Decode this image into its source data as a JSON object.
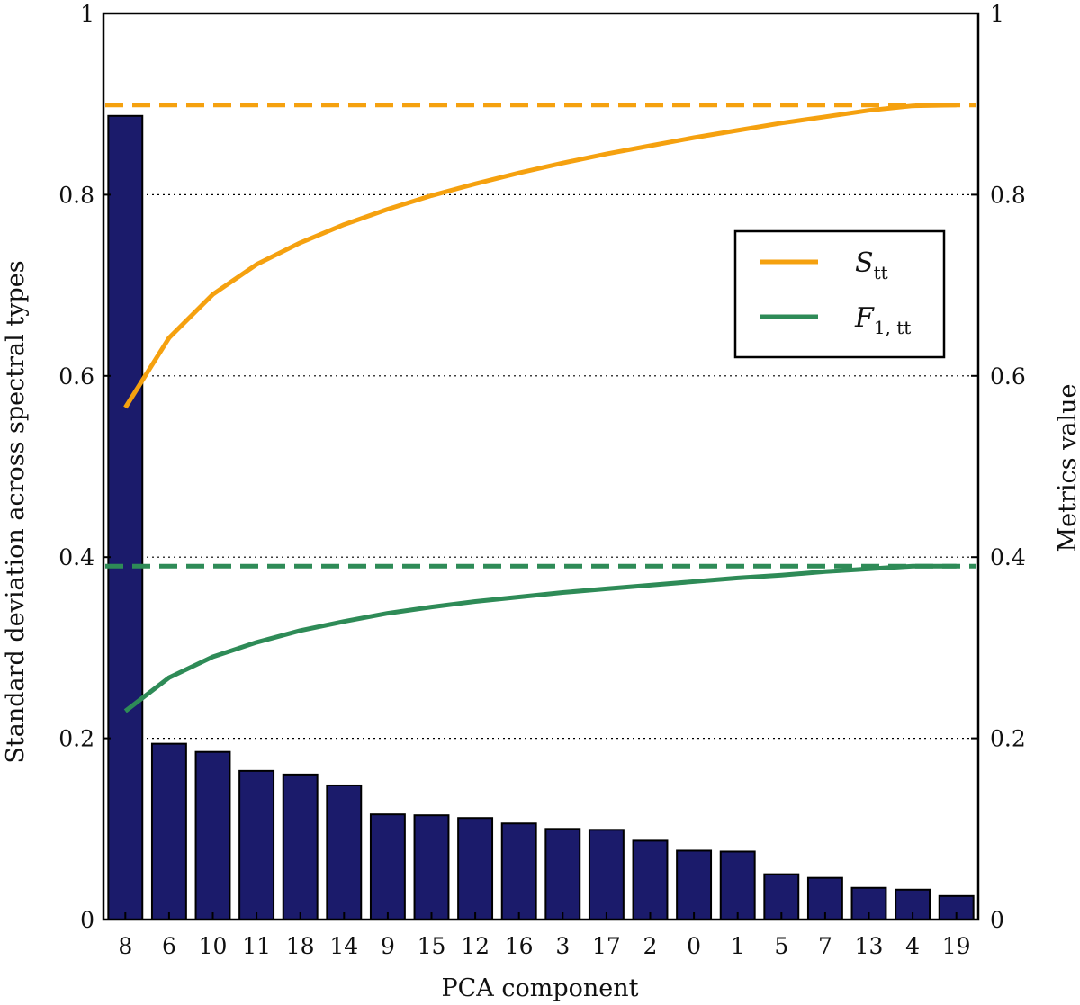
{
  "chart_data": {
    "type": "bar",
    "xlabel": "PCA component",
    "ylabel": "Standard deviation across spectral types",
    "y2label": "Metrics value",
    "categories": [
      "8",
      "6",
      "10",
      "11",
      "18",
      "14",
      "9",
      "15",
      "12",
      "16",
      "3",
      "17",
      "2",
      "0",
      "1",
      "5",
      "7",
      "13",
      "4",
      "19"
    ],
    "ylim": [
      0,
      1
    ],
    "y2lim": [
      0,
      1
    ],
    "yticks": [
      "0",
      "0.2",
      "0.4",
      "0.6",
      "0.8",
      "1"
    ],
    "y2ticks": [
      "0",
      "0.2",
      "0.4",
      "0.6",
      "0.8",
      "1"
    ],
    "grid": "horizontal dotted at 0.2 intervals",
    "legend_position": "upper-right",
    "bar_series": {
      "axis": "left",
      "color": "#1b1b6b",
      "values": [
        0.887,
        0.194,
        0.185,
        0.164,
        0.16,
        0.148,
        0.116,
        0.115,
        0.112,
        0.106,
        0.1,
        0.099,
        0.087,
        0.076,
        0.075,
        0.05,
        0.046,
        0.035,
        0.033,
        0.026
      ]
    },
    "series": [
      {
        "name": "S",
        "name_sub": "tt",
        "axis": "right",
        "color": "#f5a10f",
        "values": [
          0.565,
          0.642,
          0.69,
          0.723,
          0.747,
          0.767,
          0.784,
          0.799,
          0.812,
          0.824,
          0.835,
          0.845,
          0.854,
          0.863,
          0.871,
          0.879,
          0.886,
          0.893,
          0.898,
          0.899
        ],
        "reference": 0.899
      },
      {
        "name": "F",
        "name_sub": "1, tt",
        "axis": "right",
        "color": "#2e8b57",
        "values": [
          0.23,
          0.267,
          0.29,
          0.306,
          0.319,
          0.329,
          0.338,
          0.345,
          0.351,
          0.356,
          0.361,
          0.365,
          0.369,
          0.373,
          0.377,
          0.38,
          0.384,
          0.387,
          0.39,
          0.39
        ],
        "reference": 0.39
      }
    ]
  }
}
